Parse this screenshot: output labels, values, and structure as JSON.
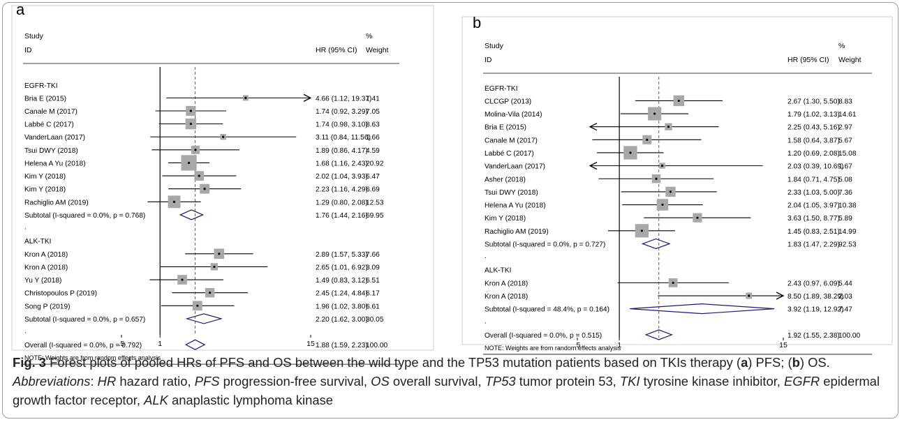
{
  "caption": {
    "fig_label": "Fig. 3",
    "text1": " Forest plots of pooled HRs of PFS and OS between the wild type and the TP53 mutation patients based on TKIs therapy (",
    "a": "a",
    "text2": ") PFS; (",
    "b": "b",
    "text3": ") OS.",
    "abbrev_label": "Abbreviations",
    "abbrev": [
      {
        "term": "HR",
        "def": "hazard ratio"
      },
      {
        "term": "PFS",
        "def": "progression-free survival"
      },
      {
        "term": "OS",
        "def": "overall survival"
      },
      {
        "term": "TP53",
        "def": "tumor protein 53"
      },
      {
        "term": "TKI",
        "def": "tyrosine kinase inhibitor"
      },
      {
        "term": "EGFR",
        "def": "epidermal growth factor receptor"
      },
      {
        "term": "ALK",
        "def": "anaplastic lymphoma kinase"
      }
    ]
  },
  "colors": {
    "diamond": "#1a1a7a",
    "null_line": "#000000",
    "overall_line": "#c0392b",
    "box": "#a8a8a8"
  },
  "chart_data": [
    {
      "type": "forest",
      "panel_label": "a",
      "header": {
        "study": "Study",
        "id": "ID",
        "hr": "HR (95% CI)",
        "pct": "%",
        "weight": "Weight"
      },
      "null_value": 1,
      "overall_value": 1.88,
      "ticks": [
        ".5",
        "1",
        "15"
      ],
      "tick_values": [
        0.5,
        1,
        15
      ],
      "note": "NOTE: Weights are from random effects analysis",
      "rows": [
        {
          "kind": "group",
          "label": "EGFR-TKI"
        },
        {
          "kind": "study",
          "label": "Bria E (2015)",
          "hr": 4.66,
          "lo": 1.12,
          "hi": 19.37,
          "ci_text": "4.66 (1.12, 19.37)",
          "weight": 1.41,
          "weight_text": "1.41"
        },
        {
          "kind": "study",
          "label": "Canale M (2017)",
          "hr": 1.74,
          "lo": 0.92,
          "hi": 3.29,
          "ci_text": "1.74 (0.92, 3.29)",
          "weight": 7.05,
          "weight_text": "7.05"
        },
        {
          "kind": "study",
          "label": "Labbé C (2017)",
          "hr": 1.74,
          "lo": 0.98,
          "hi": 3.1,
          "ci_text": "1.74 (0.98, 3.10)",
          "weight": 8.63,
          "weight_text": "8.63"
        },
        {
          "kind": "study",
          "label": "VanderLaan (2017)",
          "hr": 3.11,
          "lo": 0.84,
          "hi": 11.56,
          "ci_text": "3.11 (0.84, 11.56)",
          "weight": 1.66,
          "weight_text": "1.66"
        },
        {
          "kind": "study",
          "label": "Tsui DWY (2018)",
          "hr": 1.89,
          "lo": 0.86,
          "hi": 4.17,
          "ci_text": "1.89 (0.86, 4.17)",
          "weight": 4.59,
          "weight_text": "4.59"
        },
        {
          "kind": "study",
          "label": "Helena A Yu (2018)",
          "hr": 1.68,
          "lo": 1.16,
          "hi": 2.43,
          "ci_text": "1.68 (1.16, 2.43)",
          "weight": 20.92,
          "weight_text": "20.92"
        },
        {
          "kind": "study",
          "label": "Kim Y (2018)",
          "hr": 2.02,
          "lo": 1.04,
          "hi": 3.93,
          "ci_text": "2.02 (1.04, 3.93)",
          "weight": 6.47,
          "weight_text": "6.47"
        },
        {
          "kind": "study",
          "label": "Kim Y (2018)",
          "hr": 2.23,
          "lo": 1.16,
          "hi": 4.29,
          "ci_text": "2.23 (1.16, 4.29)",
          "weight": 6.69,
          "weight_text": "6.69"
        },
        {
          "kind": "study",
          "label": "Rachiglio AM (2019)",
          "hr": 1.29,
          "lo": 0.8,
          "hi": 2.08,
          "ci_text": "1.29 (0.80, 2.08)",
          "weight": 12.53,
          "weight_text": "12.53"
        },
        {
          "kind": "subtotal",
          "label": "Subtotal  (I-squared = 0.0%, p = 0.768)",
          "hr": 1.76,
          "lo": 1.44,
          "hi": 2.16,
          "ci_text": "1.76 (1.44, 2.16)",
          "weight_text": "69.95"
        },
        {
          "kind": "dot",
          "label": "."
        },
        {
          "kind": "group",
          "label": "ALK-TKI"
        },
        {
          "kind": "study",
          "label": "Kron A (2018)",
          "hr": 2.89,
          "lo": 1.57,
          "hi": 5.33,
          "ci_text": "2.89 (1.57, 5.33)",
          "weight": 7.66,
          "weight_text": "7.66"
        },
        {
          "kind": "study",
          "label": "Kron A (2018)",
          "hr": 2.65,
          "lo": 1.01,
          "hi": 6.92,
          "ci_text": "2.65 (1.01, 6.92)",
          "weight": 3.09,
          "weight_text": "3.09"
        },
        {
          "kind": "study",
          "label": "Yu Y (2018)",
          "hr": 1.49,
          "lo": 0.83,
          "hi": 3.12,
          "ci_text": "1.49 (0.83, 3.12)",
          "weight": 6.51,
          "weight_text": "6.51"
        },
        {
          "kind": "study",
          "label": "Christopoulos P (2019)",
          "hr": 2.45,
          "lo": 1.24,
          "hi": 4.84,
          "ci_text": "2.45 (1.24, 4.84)",
          "weight": 6.17,
          "weight_text": "6.17"
        },
        {
          "kind": "study",
          "label": "Song P (2019)",
          "hr": 1.96,
          "lo": 1.02,
          "hi": 3.8,
          "ci_text": "1.96 (1.02, 3.80)",
          "weight": 6.61,
          "weight_text": "6.61"
        },
        {
          "kind": "subtotal",
          "label": "Subtotal  (I-squared = 0.0%, p = 0.657)",
          "hr": 2.2,
          "lo": 1.62,
          "hi": 3.0,
          "ci_text": "2.20 (1.62, 3.00)",
          "weight_text": "30.05"
        },
        {
          "kind": "dot",
          "label": "."
        },
        {
          "kind": "overall",
          "label": "Overall  (I-squared = 0.0%, p = 0.792)",
          "hr": 1.88,
          "lo": 1.59,
          "hi": 2.23,
          "ci_text": "1.88 (1.59, 2.23)",
          "weight_text": "100.00"
        }
      ]
    },
    {
      "type": "forest",
      "panel_label": "b",
      "header": {
        "study": "Study",
        "id": "ID",
        "hr": "HR (95% CI)",
        "pct": "%",
        "weight": "Weight"
      },
      "null_value": 1,
      "overall_value": 1.92,
      "ticks": [
        ".5",
        "1",
        "15"
      ],
      "tick_values": [
        0.5,
        1,
        15
      ],
      "note": "NOTE: Weights are from random effects analysis",
      "rows": [
        {
          "kind": "group",
          "label": "EGFR-TKI"
        },
        {
          "kind": "study",
          "label": "CLCGP (2013)",
          "hr": 2.67,
          "lo": 1.3,
          "hi": 5.5,
          "ci_text": "2.67 (1.30, 5.50)",
          "weight": 8.83,
          "weight_text": "8.83"
        },
        {
          "kind": "study",
          "label": "Molina-Vila (2014)",
          "hr": 1.79,
          "lo": 1.02,
          "hi": 3.13,
          "ci_text": "1.79 (1.02, 3.13)",
          "weight": 14.61,
          "weight_text": "14.61"
        },
        {
          "kind": "study",
          "label": "Bria E (2015)",
          "hr": 2.25,
          "lo": 0.43,
          "hi": 5.16,
          "ci_text": "2.25 (0.43, 5.16)",
          "weight": 2.97,
          "weight_text": "2.97"
        },
        {
          "kind": "study",
          "label": "Canale M (2017)",
          "hr": 1.58,
          "lo": 0.64,
          "hi": 3.87,
          "ci_text": "1.58 (0.64, 3.87)",
          "weight": 5.67,
          "weight_text": "5.67"
        },
        {
          "kind": "study",
          "label": "Labbé C (2017)",
          "hr": 1.2,
          "lo": 0.69,
          "hi": 2.08,
          "ci_text": "1.20 (0.69, 2.08)",
          "weight": 15.08,
          "weight_text": "15.08"
        },
        {
          "kind": "study",
          "label": "VanderLaan (2017)",
          "hr": 2.03,
          "lo": 0.39,
          "hi": 10.69,
          "ci_text": "2.03 (0.39, 10.69)",
          "weight": 1.67,
          "weight_text": "1.67"
        },
        {
          "kind": "study",
          "label": "Asher (2018)",
          "hr": 1.84,
          "lo": 0.71,
          "hi": 4.75,
          "ci_text": "1.84 (0.71, 4.75)",
          "weight": 5.08,
          "weight_text": "5.08"
        },
        {
          "kind": "study",
          "label": "Tsui DWY (2018)",
          "hr": 2.33,
          "lo": 1.03,
          "hi": 5.0,
          "ci_text": "2.33 (1.03, 5.00)",
          "weight": 7.36,
          "weight_text": "7.36"
        },
        {
          "kind": "study",
          "label": "Helena A Yu (2018)",
          "hr": 2.04,
          "lo": 1.05,
          "hi": 3.97,
          "ci_text": "2.04 (1.05, 3.97)",
          "weight": 10.38,
          "weight_text": "10.38"
        },
        {
          "kind": "study",
          "label": "Kim Y (2018)",
          "hr": 3.63,
          "lo": 1.5,
          "hi": 8.77,
          "ci_text": "3.63 (1.50, 8.77)",
          "weight": 5.89,
          "weight_text": "5.89"
        },
        {
          "kind": "study",
          "label": "Rachiglio AM (2019)",
          "hr": 1.45,
          "lo": 0.83,
          "hi": 2.51,
          "ci_text": "1.45 (0.83, 2.51)",
          "weight": 14.99,
          "weight_text": "14.99"
        },
        {
          "kind": "subtotal",
          "label": "Subtotal  (I-squared = 0.0%, p = 0.727)",
          "hr": 1.83,
          "lo": 1.47,
          "hi": 2.29,
          "ci_text": "1.83 (1.47, 2.29)",
          "weight_text": "92.53"
        },
        {
          "kind": "dot",
          "label": "."
        },
        {
          "kind": "group",
          "label": "ALK-TKI"
        },
        {
          "kind": "study",
          "label": "Kron A (2018)",
          "hr": 2.43,
          "lo": 0.97,
          "hi": 6.09,
          "ci_text": "2.43 (0.97, 6.09)",
          "weight": 5.44,
          "weight_text": "5.44"
        },
        {
          "kind": "study",
          "label": "Kron A (2018)",
          "hr": 8.5,
          "lo": 1.89,
          "hi": 38.29,
          "ci_text": "8.50 (1.89, 38.29)",
          "weight": 2.03,
          "weight_text": "2.03"
        },
        {
          "kind": "subtotal",
          "label": "Subtotal  (I-squared = 48.4%, p = 0.164)",
          "hr": 3.92,
          "lo": 1.19,
          "hi": 12.92,
          "ci_text": "3.92 (1.19, 12.92)",
          "weight_text": "7.47"
        },
        {
          "kind": "dot",
          "label": "."
        },
        {
          "kind": "overall",
          "label": "Overall  (I-squared = 0.0%, p = 0.515)",
          "hr": 1.92,
          "lo": 1.55,
          "hi": 2.38,
          "ci_text": "1.92 (1.55, 2.38)",
          "weight_text": "100.00"
        }
      ]
    }
  ]
}
